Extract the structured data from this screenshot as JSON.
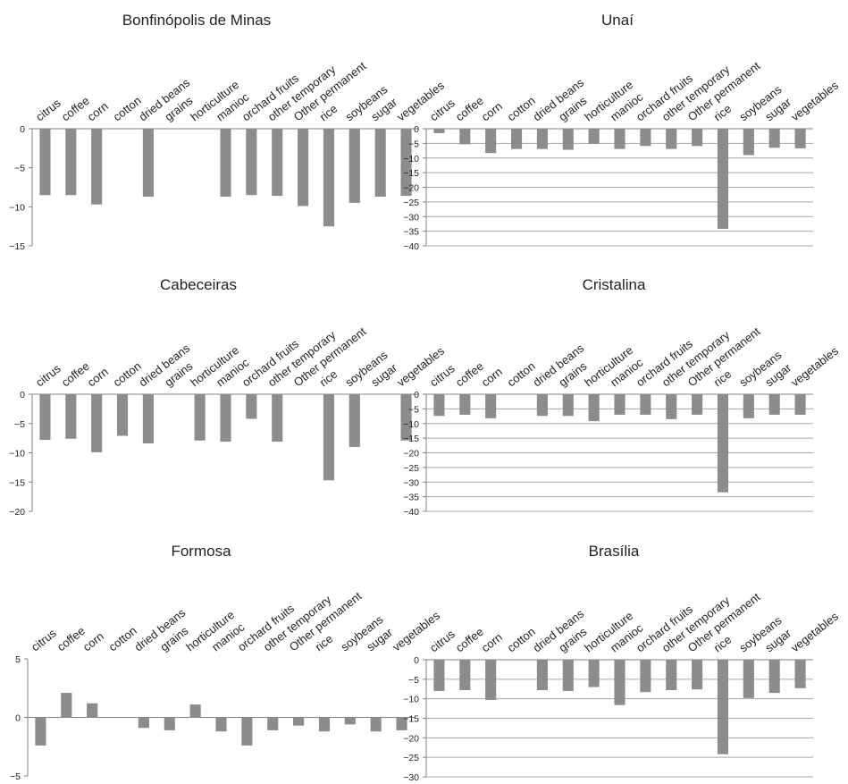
{
  "categories": [
    "citrus",
    "coffee",
    "corn",
    "cotton",
    "dried beans",
    "grains",
    "horticulture",
    "manioc",
    "orchard fruits",
    "other temporary",
    "Other permanent",
    "rice",
    "soybeans",
    "sugar",
    "vegetables"
  ],
  "colors": {
    "bar": "#8c8c8c",
    "grid": "#a6a6a6",
    "text": "#231f20"
  },
  "chart_data": [
    {
      "type": "bar",
      "title": "Bonfinópolis de Minas",
      "xlabel": "",
      "ylabel": "",
      "ylim": [
        -15,
        0
      ],
      "yticks": [
        0,
        -5,
        -10,
        -15
      ],
      "gridlines": false,
      "x_labels_position": "top",
      "series": [
        {
          "values": [
            -8.5,
            -8.5,
            -9.7,
            null,
            -8.7,
            null,
            null,
            -8.7,
            -8.5,
            -8.6,
            -9.9,
            -12.5,
            -9.5,
            -8.7,
            -8.6
          ]
        }
      ]
    },
    {
      "type": "bar",
      "title": "Unaí",
      "xlabel": "",
      "ylabel": "",
      "ylim": [
        -40,
        0
      ],
      "yticks": [
        0,
        -5,
        -10,
        -15,
        -20,
        -25,
        -30,
        -35,
        -40
      ],
      "gridlines": true,
      "x_labels_position": "top",
      "series": [
        {
          "values": [
            -1.5,
            -5.3,
            -8.3,
            -6.9,
            -6.9,
            -7.2,
            -5.2,
            -6.9,
            -5.9,
            -6.9,
            -5.9,
            -34.2,
            -9.0,
            -6.5,
            -6.7
          ]
        }
      ]
    },
    {
      "type": "bar",
      "title": "Cabeceiras",
      "xlabel": "",
      "ylabel": "",
      "ylim": [
        -20,
        0
      ],
      "yticks": [
        0,
        -5,
        -10,
        -15,
        -20
      ],
      "gridlines": false,
      "x_labels_position": "top",
      "series": [
        {
          "values": [
            -7.8,
            -7.6,
            -9.9,
            -7.1,
            -8.4,
            null,
            -7.9,
            -8.1,
            -4.2,
            -8.1,
            null,
            -14.7,
            -9.0,
            null,
            -7.9
          ]
        }
      ]
    },
    {
      "type": "bar",
      "title": "Cristalina",
      "xlabel": "",
      "ylabel": "",
      "ylim": [
        -40,
        0
      ],
      "yticks": [
        0,
        -5,
        -10,
        -15,
        -20,
        -25,
        -30,
        -35,
        -40
      ],
      "gridlines": true,
      "x_labels_position": "top",
      "series": [
        {
          "values": [
            -7.4,
            -7.0,
            -8.2,
            null,
            -7.4,
            -7.4,
            -9.2,
            -7.0,
            -7.0,
            -8.5,
            -7.0,
            -33.5,
            -8.2,
            -7.0,
            -7.0
          ]
        }
      ]
    },
    {
      "type": "bar",
      "title": "Formosa",
      "xlabel": "",
      "ylabel": "",
      "ylim": [
        -5,
        5
      ],
      "yticks": [
        5,
        0,
        -5
      ],
      "gridlines": false,
      "x_labels_position": "top",
      "series": [
        {
          "values": [
            -2.4,
            2.1,
            1.2,
            null,
            -0.9,
            -1.1,
            1.1,
            -1.2,
            -2.4,
            -1.1,
            -0.7,
            -1.2,
            -0.6,
            -1.2,
            -1.1
          ]
        }
      ]
    },
    {
      "type": "bar",
      "title": "Brasília",
      "xlabel": "",
      "ylabel": "",
      "ylim": [
        -30,
        0
      ],
      "yticks": [
        0,
        -5,
        -10,
        -15,
        -20,
        -25,
        -30
      ],
      "gridlines": true,
      "x_labels_position": "top",
      "series": [
        {
          "values": [
            -8.0,
            -7.8,
            -10.3,
            null,
            -7.8,
            -8.0,
            -7.0,
            -11.6,
            -8.3,
            -7.8,
            -7.6,
            -24.2,
            -9.8,
            -8.5,
            -7.3
          ]
        }
      ]
    }
  ]
}
